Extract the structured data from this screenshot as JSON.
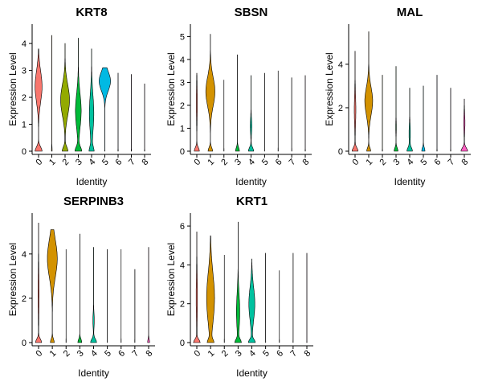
{
  "chart_data": [
    {
      "type": "violin",
      "title": "KRT8",
      "xlabel": "Identity",
      "ylabel": "Expression Level",
      "categories": [
        "0",
        "1",
        "2",
        "3",
        "4",
        "5",
        "6",
        "7",
        "8"
      ],
      "yticks": [
        "0",
        "1",
        "2",
        "3",
        "4"
      ],
      "ylim": [
        0,
        4.6
      ],
      "colors": [
        "#F8766D",
        "#D39200",
        "#93AA00",
        "#00BA38",
        "#00C19F",
        "#00B9E3",
        "#619CFF",
        "#DB72FB",
        "#FF61C3"
      ],
      "max": [
        3.8,
        4.3,
        4.0,
        4.2,
        3.8,
        3.1,
        2.9,
        2.85,
        2.5
      ],
      "zero_width": [
        0.55,
        0.05,
        0.45,
        0.5,
        0.35,
        0.02,
        0.02,
        0.02,
        0.02
      ],
      "mode": [
        2.4,
        0,
        1.9,
        1.5,
        1.4,
        2.6,
        0,
        0,
        0
      ],
      "mode_width": [
        0.55,
        0,
        0.7,
        0.45,
        0.35,
        0.9,
        0,
        0,
        0
      ],
      "mode_spread": [
        0.8,
        0,
        0.8,
        0.9,
        1.0,
        0.5,
        0,
        0,
        0
      ]
    },
    {
      "type": "violin",
      "title": "SBSN",
      "xlabel": "Identity",
      "ylabel": "Expression Level",
      "categories": [
        "0",
        "1",
        "2",
        "3",
        "4",
        "5",
        "6",
        "7",
        "8"
      ],
      "yticks": [
        "0",
        "1",
        "2",
        "3",
        "4",
        "5"
      ],
      "ylim": [
        0,
        5.4
      ],
      "colors": [
        "#F8766D",
        "#D39200",
        "#93AA00",
        "#00BA38",
        "#00C19F",
        "#00B9E3",
        "#619CFF",
        "#DB72FB",
        "#FF61C3"
      ],
      "max": [
        3.4,
        5.1,
        3.1,
        4.2,
        3.3,
        3.4,
        3.5,
        3.2,
        3.3
      ],
      "zero_width": [
        0.4,
        0.35,
        0.02,
        0.3,
        0.4,
        0.02,
        0.02,
        0.02,
        0.02
      ],
      "mode": [
        2.1,
        2.6,
        0,
        0,
        1.1,
        0,
        0,
        0,
        0
      ],
      "mode_width": [
        0.08,
        0.7,
        0,
        0,
        0.12,
        0,
        0,
        0,
        0
      ],
      "mode_spread": [
        1.0,
        0.9,
        0,
        0,
        0.5,
        0,
        0,
        0,
        0
      ]
    },
    {
      "type": "violin",
      "title": "MAL",
      "xlabel": "Identity",
      "ylabel": "Expression Level",
      "categories": [
        "0",
        "1",
        "2",
        "3",
        "4",
        "5",
        "6",
        "7",
        "8"
      ],
      "yticks": [
        "0",
        "2",
        "4"
      ],
      "ylim": [
        0,
        5.7
      ],
      "colors": [
        "#F8766D",
        "#D39200",
        "#93AA00",
        "#00BA38",
        "#00C19F",
        "#00B9E3",
        "#619CFF",
        "#DB72FB",
        "#FF61C3"
      ],
      "max": [
        4.6,
        5.5,
        3.5,
        3.9,
        2.9,
        3.0,
        3.5,
        2.9,
        2.4
      ],
      "zero_width": [
        0.45,
        0.3,
        0.02,
        0.3,
        0.4,
        0.25,
        0.02,
        0.02,
        0.5
      ],
      "mode": [
        1.9,
        2.3,
        0,
        1.1,
        0.8,
        0,
        0,
        0,
        1.3
      ],
      "mode_width": [
        0.12,
        0.6,
        0,
        0.05,
        0.1,
        0,
        0,
        0,
        0.1
      ],
      "mode_spread": [
        1.0,
        0.9,
        0,
        0.4,
        0.6,
        0,
        0,
        0,
        0.6
      ]
    },
    {
      "type": "violin",
      "title": "SERPINB3",
      "xlabel": "Identity",
      "ylabel": "Expression Level",
      "categories": [
        "0",
        "1",
        "2",
        "3",
        "4",
        "5",
        "6",
        "7",
        "8"
      ],
      "yticks": [
        "0",
        "2",
        "4"
      ],
      "ylim": [
        0,
        5.7
      ],
      "colors": [
        "#F8766D",
        "#D39200",
        "#93AA00",
        "#00BA38",
        "#00C19F",
        "#00B9E3",
        "#619CFF",
        "#DB72FB",
        "#FF61C3"
      ],
      "max": [
        5.4,
        5.1,
        4.2,
        4.9,
        4.3,
        4.2,
        4.2,
        3.3,
        4.3
      ],
      "zero_width": [
        0.45,
        0.3,
        0.02,
        0.3,
        0.45,
        0.02,
        0.02,
        0.02,
        0.15
      ],
      "mode": [
        2.2,
        3.8,
        0,
        0,
        1.0,
        0,
        0,
        0,
        0
      ],
      "mode_width": [
        0.08,
        0.75,
        0,
        0,
        0.1,
        0,
        0,
        0,
        0
      ],
      "mode_spread": [
        1.5,
        1.2,
        0,
        0,
        0.5,
        0,
        0,
        0,
        0
      ]
    },
    {
      "type": "violin",
      "title": "KRT1",
      "xlabel": "Identity",
      "ylabel": "Expression Level",
      "categories": [
        "0",
        "1",
        "2",
        "3",
        "4",
        "5",
        "6",
        "7",
        "8"
      ],
      "yticks": [
        "0",
        "2",
        "4",
        "6"
      ],
      "ylim": [
        0,
        6.5
      ],
      "colors": [
        "#F8766D",
        "#D39200",
        "#93AA00",
        "#00BA38",
        "#00C19F",
        "#00B9E3",
        "#619CFF",
        "#DB72FB",
        "#FF61C3"
      ],
      "max": [
        5.7,
        5.5,
        4.5,
        6.2,
        4.3,
        4.6,
        3.7,
        4.6,
        4.6
      ],
      "zero_width": [
        0.5,
        0.4,
        0.02,
        0.45,
        0.5,
        0.02,
        0.02,
        0.02,
        0.02
      ],
      "mode": [
        2.3,
        2.3,
        0,
        1.6,
        2.0,
        0,
        0,
        0,
        0
      ],
      "mode_width": [
        0.1,
        0.6,
        0,
        0.25,
        0.45,
        0,
        0,
        0,
        0
      ],
      "mode_spread": [
        1.6,
        1.8,
        0,
        1.3,
        1.2,
        0,
        0,
        0,
        0
      ]
    }
  ]
}
